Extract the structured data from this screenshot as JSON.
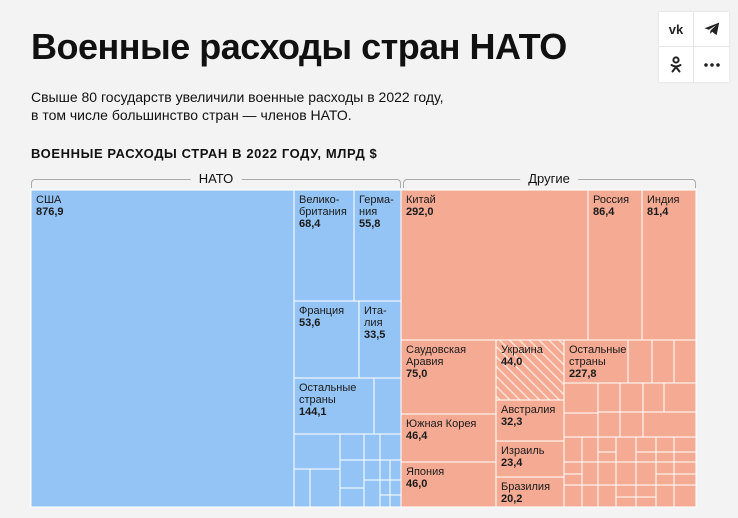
{
  "header": {
    "title": "Военные расходы стран НАТО",
    "subtitle_line1": "Свыше 80 государств увеличили военные расходы в 2022 году,",
    "subtitle_line2": "в том числе большинство стран — членов НАТО."
  },
  "share": {
    "vk": "vk",
    "telegram_icon": "telegram-icon",
    "ok_icon": "odnoklassniki-icon",
    "more_icon": "more-dots-icon"
  },
  "chart_data": {
    "type": "treemap",
    "title": "ВОЕННЫЕ РАСХОДЫ СТРАН В 2022 ГОДУ, МЛРД $",
    "groups": [
      {
        "name": "НАТО",
        "color": "#94c4f5",
        "items": [
          {
            "label": [
              "США"
            ],
            "value": "876,9"
          },
          {
            "label": [
              "Велико-",
              "британия"
            ],
            "value": "68,4"
          },
          {
            "label": [
              "Герма-",
              "ния"
            ],
            "value": "55,8"
          },
          {
            "label": [
              "Франция"
            ],
            "value": "53,6"
          },
          {
            "label": [
              "Ита-",
              "лия"
            ],
            "value": "33,5"
          },
          {
            "label": [
              "Остальные",
              "страны"
            ],
            "value": "144,1"
          }
        ]
      },
      {
        "name": "Другие",
        "color": "#f5ab93",
        "items": [
          {
            "label": [
              "Китай"
            ],
            "value": "292,0"
          },
          {
            "label": [
              "Россия"
            ],
            "value": "86,4"
          },
          {
            "label": [
              "Индия"
            ],
            "value": "81,4"
          },
          {
            "label": [
              "Саудовская",
              "Аравия"
            ],
            "value": "75,0"
          },
          {
            "label": [
              "Украина"
            ],
            "value": "44,0"
          },
          {
            "label": [
              "Остальные",
              "страны"
            ],
            "value": "227,8"
          },
          {
            "label": [
              "Южная Корея"
            ],
            "value": "46,4"
          },
          {
            "label": [
              "Австралия"
            ],
            "value": "32,3"
          },
          {
            "label": [
              "Израиль"
            ],
            "value": "23,4"
          },
          {
            "label": [
              "Япония"
            ],
            "value": "46,0"
          },
          {
            "label": [
              "Бразилия"
            ],
            "value": "20,2"
          }
        ]
      }
    ]
  }
}
